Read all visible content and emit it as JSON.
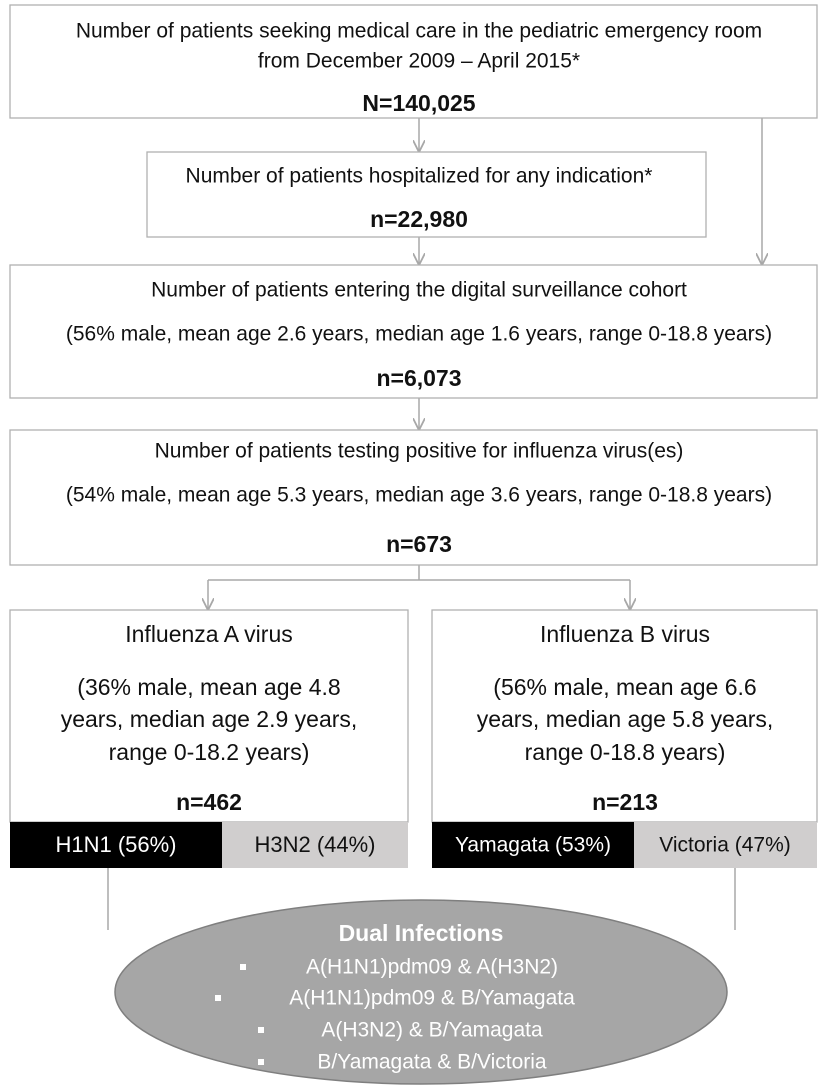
{
  "boxes": [
    {
      "lines": [
        "Number of patients seeking medical care in the pediatric emergency room",
        "from December 2009 – April 2015*"
      ],
      "count": "N=140,025"
    },
    {
      "lines": [
        "Number of patients hospitalized for any indication*"
      ],
      "count": "n=22,980"
    },
    {
      "lines": [
        "Number of patients entering the digital surveillance cohort",
        "(56% male, mean age 2.6 years, median age 1.6 years, range 0-18.8 years)"
      ],
      "count": "n=6,073"
    },
    {
      "lines": [
        "Number of patients testing positive for influenza virus(es)",
        "(54% male, mean age 5.3 years, median age 3.6 years, range 0-18.8 years)"
      ],
      "count": "n=673"
    }
  ],
  "branches": [
    {
      "title": "Influenza A virus",
      "lines": [
        "(36% male, mean age 4.8",
        "years, median age 2.9 years,",
        "range 0-18.2 years)"
      ],
      "count": "n=462",
      "subtypes": [
        "H1N1 (56%)",
        "H3N2 (44%)"
      ]
    },
    {
      "title": "Influenza B virus",
      "lines": [
        "(56% male, mean age 6.6",
        "years, median age 5.8 years,",
        "range 0-18.8 years)"
      ],
      "count": "n=213",
      "subtypes": [
        "Yamagata (53%)",
        "Victoria (47%)"
      ]
    }
  ],
  "dual": {
    "title": "Dual Infections",
    "items": [
      "A(H1N1)pdm09 & A(H3N2)",
      "A(H1N1)pdm09 & B/Yamagata",
      "A(H3N2) & B/Yamagata",
      "B/Yamagata & B/Victoria"
    ]
  }
}
